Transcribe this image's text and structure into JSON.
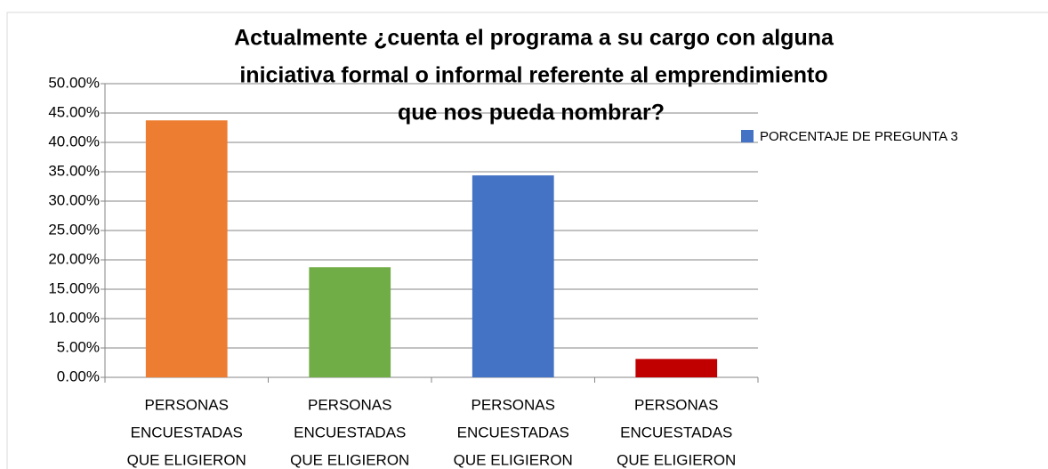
{
  "chart_data": {
    "type": "bar",
    "title": [
      "Actualmente ¿cuenta el programa a su cargo con alguna",
      "iniciativa formal o informal referente al emprendimiento",
      "que nos pueda nombrar?"
    ],
    "categories": [
      [
        "PERSONAS",
        "ENCUESTADAS",
        "QUE ELIGIERON"
      ],
      [
        "PERSONAS",
        "ENCUESTADAS",
        "QUE ELIGIERON"
      ],
      [
        "PERSONAS",
        "ENCUESTADAS",
        "QUE ELIGIERON"
      ],
      [
        "PERSONAS",
        "ENCUESTADAS",
        "QUE ELIGIERON"
      ]
    ],
    "series": [
      {
        "name": "PORCENTAJE DE PREGUNTA 3",
        "color": "#4472c4",
        "values": [
          43.75,
          18.75,
          34.38,
          3.13
        ],
        "colors": [
          "#ed7d31",
          "#70ad47",
          "#4472c4",
          "#c00000"
        ]
      }
    ],
    "ylim": [
      0,
      50
    ],
    "yticks": [
      {
        "value": 0,
        "label": "0.00%"
      },
      {
        "value": 5,
        "label": "5.00%"
      },
      {
        "value": 10,
        "label": "10.00%"
      },
      {
        "value": 15,
        "label": "15.00%"
      },
      {
        "value": 20,
        "label": "20.00%"
      },
      {
        "value": 25,
        "label": "25.00%"
      },
      {
        "value": 30,
        "label": "30.00%"
      },
      {
        "value": 35,
        "label": "35.00%"
      },
      {
        "value": 40,
        "label": "40.00%"
      },
      {
        "value": 45,
        "label": "45.00%"
      },
      {
        "value": 50,
        "label": "50.00%"
      }
    ],
    "grid": true,
    "legend": "right"
  }
}
